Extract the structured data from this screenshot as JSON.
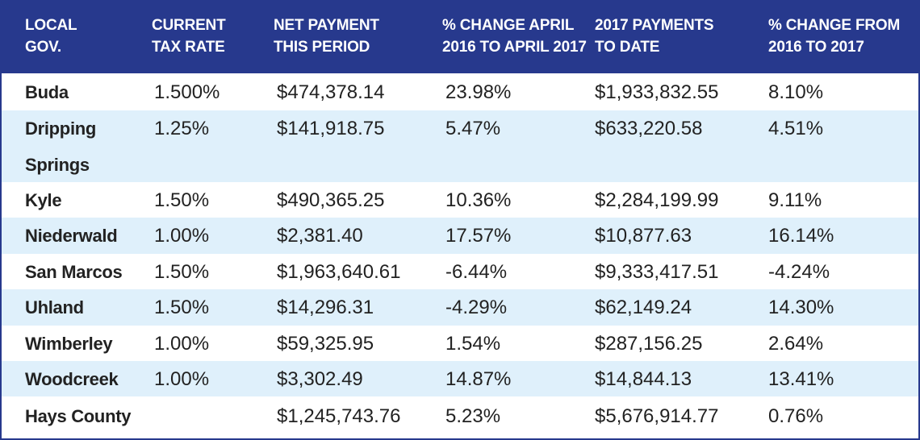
{
  "table": {
    "headers": [
      "LOCAL\nGOV.",
      "CURRENT\nTAX RATE",
      "NET PAYMENT\nTHIS PERIOD",
      "% CHANGE APRIL\n2016 TO APRIL 2017",
      "2017 PAYMENTS\nTO DATE",
      "% CHANGE FROM\n2016 TO 2017"
    ],
    "rows": [
      [
        "Buda",
        "1.500%",
        "$474,378.14",
        "23.98%",
        "$1,933,832.55",
        "8.10%"
      ],
      [
        "Dripping Springs",
        "1.25%",
        "$141,918.75",
        "5.47%",
        "$633,220.58",
        "4.51%"
      ],
      [
        "Kyle",
        "1.50%",
        "$490,365.25",
        "10.36%",
        "$2,284,199.99",
        "9.11%"
      ],
      [
        "Niederwald",
        "1.00%",
        "$2,381.40",
        "17.57%",
        "$10,877.63",
        "16.14%"
      ],
      [
        "San Marcos",
        "1.50%",
        "$1,963,640.61",
        "-6.44%",
        "$9,333,417.51",
        "-4.24%"
      ],
      [
        "Uhland",
        "1.50%",
        "$14,296.31",
        "-4.29%",
        "$62,149.24",
        "14.30%"
      ],
      [
        "Wimberley",
        "1.00%",
        "$59,325.95",
        "1.54%",
        "$287,156.25",
        "2.64%"
      ],
      [
        "Woodcreek",
        "1.00%",
        "$3,302.49",
        "14.87%",
        "$14,844.13",
        "13.41%"
      ],
      [
        "Hays County",
        "",
        "$1,245,743.76",
        "5.23%",
        "$5,676,914.77",
        "0.76%"
      ]
    ]
  },
  "colors": {
    "header_background": "#27398d",
    "header_text": "#ffffff",
    "shaded_row": "#dff0fb",
    "body_text": "#222222"
  }
}
